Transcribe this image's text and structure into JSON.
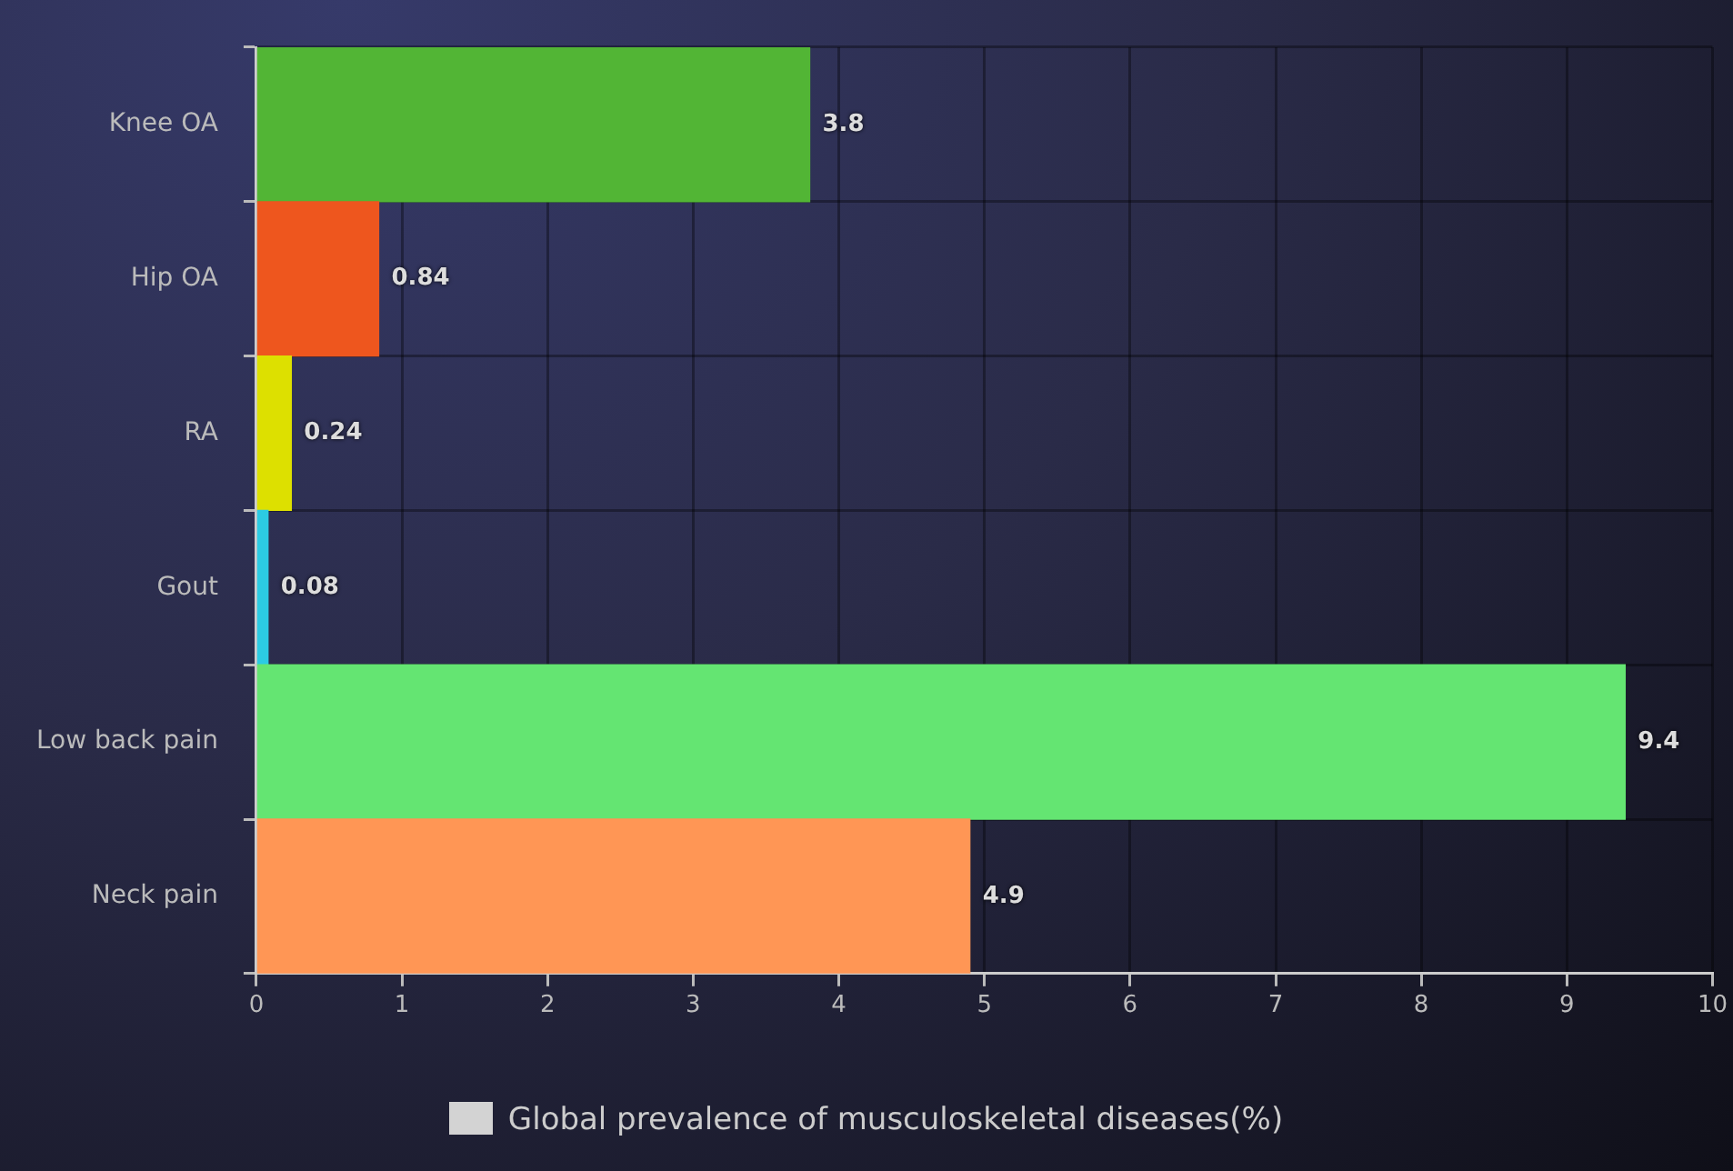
{
  "chart_data": {
    "type": "bar",
    "orientation": "horizontal",
    "categories": [
      "Knee OA",
      "Hip OA",
      "RA",
      "Gout",
      "Low back pain",
      "Neck pain"
    ],
    "series": [
      {
        "name": "Global prevalence of musculoskeletal diseases(%)",
        "color": "#d3d3d3",
        "colors": [
          "#52b535",
          "#ee561e",
          "#dde000",
          "#2ccbe3",
          "#64e572",
          "#ff9655"
        ],
        "values": [
          3.8,
          0.84,
          0.24,
          0.08,
          9.4,
          4.9
        ]
      }
    ],
    "xlim": [
      0,
      10
    ],
    "xticks": [
      0,
      1,
      2,
      3,
      4,
      5,
      6,
      7,
      8,
      9,
      10
    ],
    "grid": true,
    "legend": "bottom",
    "data_labels": true
  }
}
